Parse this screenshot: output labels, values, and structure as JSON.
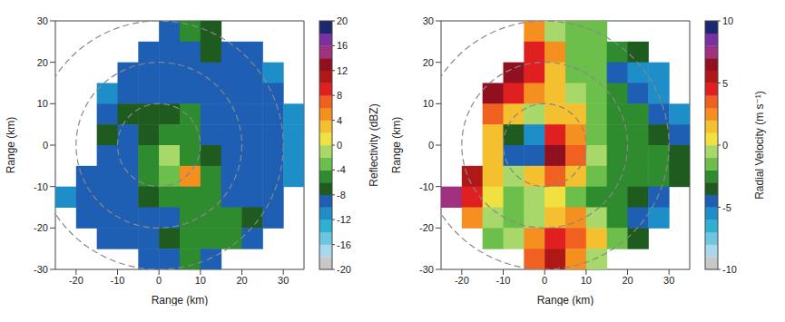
{
  "chart_data": [
    {
      "type": "heatmap",
      "xlabel": "Range (km)",
      "ylabel": "Range (km)",
      "xlim": [
        -25,
        35
      ],
      "ylim": [
        -30,
        30
      ],
      "xticks": [
        -20,
        -10,
        0,
        10,
        20,
        30
      ],
      "yticks": [
        -30,
        -20,
        -10,
        0,
        10,
        20,
        30
      ],
      "x": [
        -22.5,
        -17.5,
        -12.5,
        -7.5,
        -2.5,
        2.5,
        7.5,
        12.5,
        17.5,
        22.5,
        27.5,
        32.5
      ],
      "y": [
        27.5,
        22.5,
        17.5,
        12.5,
        7.5,
        2.5,
        -2.5,
        -7.5,
        -12.5,
        -17.5,
        -22.5,
        -27.5
      ],
      "cells": [
        [
          null,
          null,
          null,
          null,
          null,
          -10,
          -6,
          -8,
          null,
          null,
          null,
          null
        ],
        [
          null,
          null,
          null,
          null,
          -10,
          -10,
          -9,
          -8,
          -9,
          -10,
          null,
          null
        ],
        [
          null,
          null,
          null,
          -10,
          -10,
          -9,
          -9,
          -9,
          -9,
          -9,
          -12,
          null
        ],
        [
          null,
          null,
          -12,
          -9,
          -9,
          -9,
          -9,
          -9,
          -9,
          -9,
          -10,
          null
        ],
        [
          null,
          null,
          -10,
          -7,
          -8,
          -7,
          -6,
          -9,
          -9,
          -9,
          -9,
          -12
        ],
        [
          null,
          null,
          -8,
          -9,
          -8,
          -6,
          -5,
          -9,
          -9,
          -9,
          -9,
          -11
        ],
        [
          null,
          null,
          -9,
          -9,
          -6,
          -2,
          -5,
          -8,
          -9,
          -9,
          -9,
          -11
        ],
        [
          null,
          -10,
          -9,
          -9,
          -6,
          -4,
          4,
          -6,
          -9,
          -9,
          -9,
          -12
        ],
        [
          -12,
          -9,
          -9,
          -9,
          -8,
          -5,
          -5,
          -6,
          -9,
          -9,
          -10,
          null
        ],
        [
          null,
          -10,
          -9,
          -9,
          -9,
          -9,
          -6,
          -6,
          -6,
          -8,
          -10,
          null
        ],
        [
          null,
          null,
          -10,
          -9,
          -9,
          -8,
          -6,
          -5,
          -6,
          -9,
          null,
          null
        ],
        [
          null,
          null,
          null,
          null,
          -10,
          -9,
          -6,
          -9,
          null,
          null,
          null,
          null
        ]
      ],
      "colorbar": {
        "label": "Reflectivity (dBZ)",
        "range": [
          -20,
          20
        ],
        "ticks": [
          -20,
          -16,
          -12,
          -8,
          -4,
          0,
          4,
          8,
          12,
          16,
          20
        ]
      },
      "rings": [
        10,
        20,
        30
      ]
    },
    {
      "type": "heatmap",
      "xlabel": "Range (km)",
      "ylabel": "Range (km)",
      "xlim": [
        -25,
        35
      ],
      "ylim": [
        -30,
        30
      ],
      "xticks": [
        -20,
        -10,
        0,
        10,
        20,
        30
      ],
      "yticks": [
        -30,
        -20,
        -10,
        0,
        10,
        20,
        30
      ],
      "x": [
        -22.5,
        -17.5,
        -12.5,
        -7.5,
        -2.5,
        2.5,
        7.5,
        12.5,
        17.5,
        22.5,
        27.5,
        32.5
      ],
      "y": [
        27.5,
        22.5,
        17.5,
        12.5,
        7.5,
        2.5,
        -2.5,
        -7.5,
        -12.5,
        -17.5,
        -22.5,
        -27.5
      ],
      "cells": [
        [
          null,
          null,
          null,
          null,
          2,
          -1,
          -2,
          -2,
          null,
          null,
          null,
          null
        ],
        [
          null,
          null,
          null,
          null,
          4,
          2,
          -2,
          -2,
          -3,
          -4,
          null,
          null
        ],
        [
          null,
          null,
          null,
          6,
          4,
          1,
          -2,
          -2,
          -5,
          -6,
          -6,
          null
        ],
        [
          null,
          null,
          6,
          4,
          2,
          1,
          -1,
          -2,
          -3,
          -5,
          -6,
          null
        ],
        [
          null,
          null,
          3,
          1,
          -1,
          1,
          1,
          -2,
          -3,
          -3,
          -5,
          -6
        ],
        [
          null,
          null,
          1,
          -4,
          -6,
          4,
          2,
          -2,
          -3,
          -3,
          -4,
          -5
        ],
        [
          null,
          null,
          1,
          -5,
          -5,
          6,
          3,
          -1,
          -3,
          -3,
          -3,
          -4
        ],
        [
          null,
          5,
          1,
          -1,
          1,
          3,
          1,
          -2,
          -3,
          -3,
          -3,
          -4
        ],
        [
          7,
          4,
          0,
          -2,
          -1,
          0,
          -2,
          -3,
          -3,
          -4,
          -5,
          null
        ],
        [
          null,
          2,
          -1,
          -2,
          -1,
          1,
          2,
          -1,
          -3,
          -5,
          -6,
          null
        ],
        [
          null,
          null,
          -2,
          -1,
          2,
          4,
          3,
          1,
          -2,
          -4,
          null,
          null
        ],
        [
          null,
          null,
          null,
          null,
          3,
          5,
          2,
          -1,
          null,
          null,
          null,
          null
        ]
      ],
      "colorbar": {
        "label": "Radial Velocity (m s⁻¹)",
        "range": [
          -10,
          10
        ],
        "ticks": [
          -10,
          -5,
          0,
          5,
          10
        ]
      },
      "rings": [
        10,
        20,
        30
      ]
    }
  ]
}
